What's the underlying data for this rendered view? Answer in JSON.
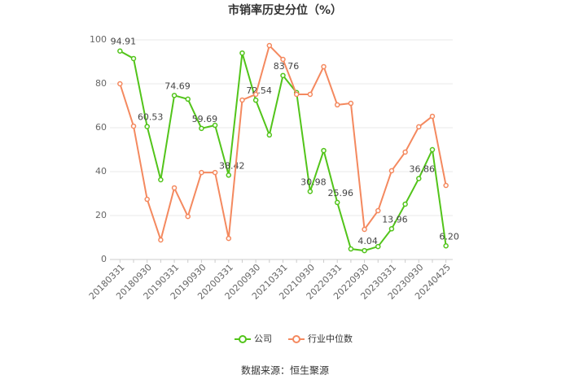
{
  "chart_data": {
    "type": "line",
    "title": "市销率历史分位（%）",
    "categories": [
      "20180331",
      null,
      "20180930",
      null,
      "20190331",
      null,
      "20190930",
      null,
      "20200331",
      null,
      "20200930",
      null,
      "20210331",
      null,
      "20210930",
      null,
      "20220331",
      null,
      "20220930",
      null,
      "20230331",
      null,
      "20230930",
      null,
      "20240425"
    ],
    "series": [
      {
        "name": "公司",
        "color": "#52c41a",
        "values": [
          94.91,
          91.5,
          60.53,
          36.3,
          74.69,
          73,
          59.69,
          61.1,
          38.42,
          94,
          72.54,
          56.7,
          83.76,
          76,
          30.98,
          49.6,
          25.96,
          4.8,
          4.04,
          5.9,
          13.96,
          25.2,
          36.86,
          50,
          6.2
        ],
        "value_labels": [
          "94.91",
          null,
          "60.53",
          null,
          "74.69",
          null,
          "59.69",
          null,
          "38.42",
          null,
          "72.54",
          null,
          "83.76",
          null,
          "30.98",
          null,
          "25.96",
          null,
          "4.04",
          null,
          "13.96",
          null,
          "36.86",
          null,
          "6.20"
        ]
      },
      {
        "name": "行业中位数",
        "color": "#f4895f",
        "values": [
          80,
          60.7,
          27.4,
          8.9,
          32.6,
          19.6,
          39.6,
          39.6,
          9.6,
          72.6,
          75.2,
          97.4,
          91.1,
          75.2,
          75.2,
          87.8,
          70.4,
          71.1,
          13.7,
          22.2,
          40.4,
          48.9,
          60.4,
          65.2,
          33.7
        ]
      }
    ],
    "ylim": [
      0,
      100
    ],
    "yticks": [
      0,
      20,
      40,
      60,
      80,
      100
    ],
    "grid": true,
    "legend": "bottom",
    "source": "数据来源：恒生聚源"
  }
}
